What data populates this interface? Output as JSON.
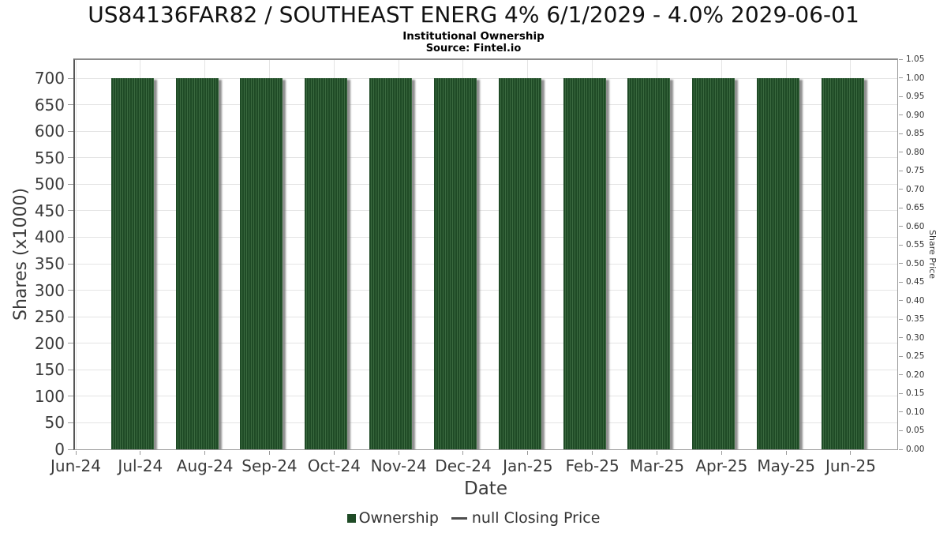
{
  "header": {
    "title": "US84136FAR82 / SOUTHEAST ENERG 4% 6/1/2029 - 4.0% 2029-06-01",
    "subtitle": "Institutional Ownership",
    "source": "Source: Fintel.io"
  },
  "axes": {
    "x": {
      "title": "Date"
    },
    "left": {
      "title": "Shares (x1000)"
    },
    "right": {
      "title": "Share Price"
    }
  },
  "legend": [
    {
      "label": "Ownership",
      "marker": "square",
      "color": "#1f4b26"
    },
    {
      "label": "null Closing Price",
      "marker": "line",
      "color": "#4d4d4d"
    }
  ],
  "colors": {
    "bar": "#1d4522",
    "bar_stripe": "#3a693f",
    "bar_shadow": "rgba(125,125,125,0.85)",
    "grid": "#e4e4e4",
    "tick": "#9a9a9a",
    "tick_text": "#3b3b3b",
    "right_tick_text": "#333333"
  },
  "chart_data": {
    "type": "bar",
    "title": "US84136FAR82 / SOUTHEAST ENERG 4% 6/1/2029 - 4.0% 2029-06-01",
    "subtitle": "Institutional Ownership",
    "source": "Source: Fintel.io",
    "xlabel": "Date",
    "ylabel_left": "Shares (x1000)",
    "ylabel_right": "Share Price",
    "grid": true,
    "legend_position": "bottom",
    "categories": [
      "Jun-24",
      "Jul-24",
      "Aug-24",
      "Sep-24",
      "Oct-24",
      "Nov-24",
      "Dec-24",
      "Jan-25",
      "Feb-25",
      "Mar-25",
      "Apr-25",
      "May-25",
      "Jun-25"
    ],
    "series": [
      {
        "name": "Ownership",
        "type": "bar",
        "axis": "left",
        "color": "#1f4b26",
        "values": [
          null,
          700,
          700,
          700,
          700,
          700,
          700,
          700,
          700,
          700,
          700,
          700,
          700
        ]
      },
      {
        "name": "null Closing Price",
        "type": "line",
        "axis": "right",
        "color": "#4d4d4d",
        "values": [
          null,
          null,
          null,
          null,
          null,
          null,
          null,
          null,
          null,
          null,
          null,
          null,
          null
        ]
      }
    ],
    "left_axis": {
      "min": 0,
      "max": 700,
      "tick_step": 50,
      "ticks": [
        0,
        50,
        100,
        150,
        200,
        250,
        300,
        350,
        400,
        450,
        500,
        550,
        600,
        650,
        700
      ]
    },
    "right_axis": {
      "min": 0.0,
      "max": 1.05,
      "tick_step": 0.05,
      "ticks": [
        "0.00",
        "0.05",
        "0.10",
        "0.15",
        "0.20",
        "0.25",
        "0.30",
        "0.35",
        "0.40",
        "0.45",
        "0.50",
        "0.55",
        "0.60",
        "0.65",
        "0.70",
        "0.75",
        "0.80",
        "0.85",
        "0.90",
        "0.95",
        "1.00",
        "1.05"
      ]
    }
  }
}
